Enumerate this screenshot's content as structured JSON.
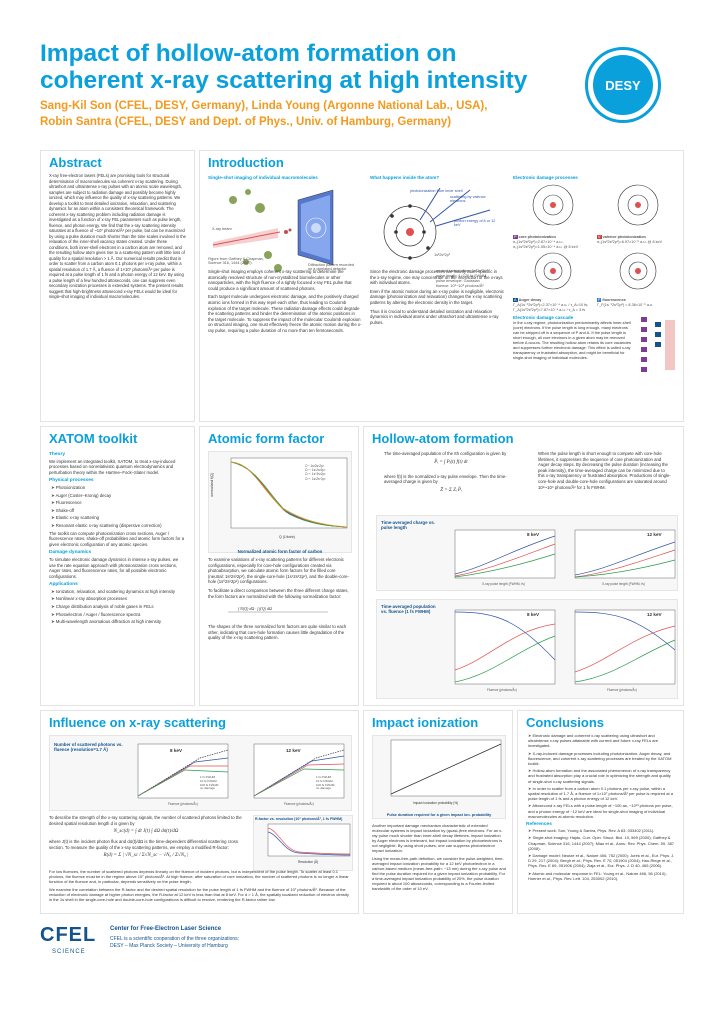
{
  "header": {
    "title_line1": "Impact of hollow-atom formation on",
    "title_line2": "coherent x-ray scattering at high intensity",
    "authors_line1": "Sang-Kil Son (CFEL, DESY, Germany), Linda Young (Argonne National Lab., USA),",
    "authors_line2": "Robin Santra (CFEL, DESY and Dept. of Phys., Univ. of Hamburg, Germany)",
    "logo": "DESY"
  },
  "abstract": {
    "heading": "Abstract",
    "text": "X-ray free-electron lasers (FELs) are promising tools for structural determination of macromolecules via coherent x-ray scattering. During ultrashort and ultraintense x-ray pulses with an atomic scale wavelength, samples are subject to radiation damage and possibly become highly ionized, which may influence the quality of x-ray scattering patterns. We develop a toolkit to treat detailed ionization, relaxation, and scattering dynamics for an atom within a consistent theoretical framework. The coherent x-ray scattering problem including radiation damage is investigated as a function of x-ray FEL parameters such as pulse length, fluence, and photon energy. We find that the x-ray scattering intensity saturates at a fluence of ~10⁷ photons/Å² per pulse, but can be maximized by using a pulse duration much shorter than the time scales involved in the relaxation of the inner-shell vacancy states created. Under these conditions, both inner-shell electrons in a carbon atom are removed, and the resulting hollow atom gives rise to a scattering pattern with little loss of quality for a spatial resolution > 1 Å. Our numerical results predict that in order to scatter from a carbon atom 0.1 photons per x-ray pulse, within a spatial resolution of 1.7 Å, a fluence of 1×10⁷ photons/Å² per pulse is required at a pulse length of 1 fs and a photon energy of 12 keV. By using a pulse length of a few hundred attoseconds, one can suppress even secondary ionization processes in extended systems. The present results suggest that high-brightness attosecond x-ray FELs would be ideal for single-shot imaging of individual macromolecules."
  },
  "introduction": {
    "heading": "Introduction",
    "fig1_title": "Single-shot imaging of individual macromolecules",
    "fig1_labels": [
      "X-ray beam",
      "Figure from Gaffney & Chapman, Science 316, 1444 (2007).",
      "Diffraction pattern recorded on a pixelated detector"
    ],
    "fig2_title": "What happens inside the atom?",
    "fig2_labels": [
      "photoionization from inner shell",
      "scattering by valence electrons",
      "photon energy of 8 or 12 keV",
      "1s²2s²2p²",
      "neutral carbon atom: 1s²2s²2p²",
      "pulse length: 1~120 fs FWHM",
      "pulse envelope: Gaussian",
      "fluence: 10⁶~10⁹ photons/Å²"
    ],
    "fig3_title": "Electronic damage processes",
    "damage_items": [
      {
        "badge": "P",
        "label": "core photoionization",
        "lines": "σ₀(1s²2s²2p²)=2.87×10⁻⁴ a.u.; σ₀(1s²2s²2p²)=1.55×10⁻⁴ a.u. @ 8 keV"
      },
      {
        "badge": "V",
        "label": "valence photoionization",
        "lines": "σ₀(1s²2s²2p²)=6.97×10⁻⁵ a.u. @ 8 keV"
      },
      {
        "badge": "A",
        "label": "Auger decay",
        "lines": "Γ_A(1s⁻¹2s²2p²)=2.37×10⁻⁴ a.u. / τ_A=10 fs; Γ_A(1s⁰2s²2p²)=7.87×10⁻⁴ a.u. / τ_A = 3 fs"
      },
      {
        "badge": "F",
        "label": "fluorescence",
        "lines": "Γ_F(1s⁻¹2s²2p²) = 8.36×10⁻⁵ a.u."
      }
    ],
    "cascade_title": "Electronic damage cascade",
    "cascade_text": "In the x-ray regime, photoionization predominantly affects inner-shell (core) electrons. If the pulse length is long enough, many electrons can be stripped off in a sequence of P and A. If the pulse length is short enough, all core electrons in a given atom may be removed before A occurs. The resulting hollow atom retains its core vacancies and suppresses further electronic damage. This effect is called x-ray transparency or frustrated absorption, and might be beneficial for single-shot imaging of individual molecules.",
    "para1": "Single-shot imaging employs coherent x-ray scattering to determine the atomically resolved structure of non-crystallized biomolecules or other nanoparticles, with the high fluence of a tightly focused x-ray FEL pulse that could produce a significant amount of scattered photons.",
    "para2": "Each target molecule undergoes electronic damage, and the positively charged atomic ions formed in this way repel each other, thus leading to Coulomb explosion of the target molecule. These radiation damage effects could degrade the scattering patterns and hinder the determination of the atomic positions in the target molecule. To suppress the impact of the molecular Coulomb explosion on structural imaging, one must effectively freeze the atomic motion during the x-ray pulse, requiring a pulse duration of no more than ten femtoseconds.",
    "para3": "Since the electronic damage processes are mainly atom-specific in the x-ray regime, one may concentrate on the interaction of the x-rays with individual atoms.",
    "para4": "Even if the atomic motion during an x-ray pulse is negligible, electronic damage (photoionization and relaxation) changes the x-ray scattering patterns by altering the electronic density in the target.",
    "para5": "Thus it is crucial to understand detailed ionization and relaxation dynamics in individual atoms under ultrashort and ultraintense x-ray pulses."
  },
  "xatom": {
    "heading": "XATOM toolkit",
    "theory_title": "Theory",
    "theory_text": "We implement an integrated toolkit, XATOM, to treat x-ray-induced processes based on nonrelativistic quantum electrodynamics and perturbation theory within the Hartree–Fock–Slater model.",
    "phys_title": "Physical processes",
    "phys_items": [
      "Photoionization",
      "Auger (Coster–Kronig) decay",
      "Fluorescence",
      "Shake-off",
      "Elastic x-ray scattering",
      "Resonant elastic x-ray scattering (dispersive correction)"
    ],
    "phys_text": "The toolkit can compute photoionization cross sections, Auger / fluorescence rates, shake-off probabilities and atomic form factors for a given electronic configuration of any atomic species.",
    "damage_title": "Damage dynamics",
    "damage_text": "To simulate electronic damage dynamics in intense x-ray pulses, we use the rate equation approach with photoionization cross sections, Auger rates, and fluorescence rates, for all possible electronic configurations.",
    "apps_title": "Applications",
    "apps_items": [
      "Ionization, relaxation, and scattering dynamics at high intensity",
      "Nonlinear x-ray absorption processes",
      "Charge distribution analysis of noble gases in FELs",
      "Photoelectron / Auger / fluorescence spectra",
      "Multi-wavelength anomalous diffraction at high intensity"
    ]
  },
  "aff": {
    "heading": "Atomic form factor",
    "fig_caption": "Normalized atomic form factor of carbon",
    "ylabel": "normalized f(Q)",
    "xlabel": "Q (1/bohr)",
    "legend": [
      "C⁰: 1s²2s²2p²",
      "C¹⁺: 1s¹2s²2p²",
      "C²⁺: 1s⁰2s²2p²",
      "C²⁺: 1s²2s⁰2p²"
    ],
    "para1": "To examine variations of x-ray scattering patterns for different electronic configurations, especially for core-hole configurations created via photoabsorption, we calculate atomic form factors for the filled core (neutral: 1s²2s²2p²), the single-core-hole (1s¹2s²2p²), and the double-core-hole (1s⁰2s²2p²) configurations.",
    "para2": "To facilitate a direct comparison between the three different charge states, the form factors are normalized with the following normalization factor:",
    "para3": "The shapes of the three normalized form factors are quite similar to each other, indicating that core-hole formation causes little degradation of the quality of the x-ray scattering pattern."
  },
  "hollow": {
    "heading": "Hollow-atom formation",
    "para1": "The time-averaged population of the Ith configuration is given by",
    "para2": "where f(t) is the normalized x-ray pulse envelope. Then the time-averaged charge is given by",
    "para3": "When the pulse length is short enough to compete with core-hole lifetimes, it suppresses the sequence of core photoionization and Auger decay steps. By decreasing the pulse duration (increasing the peak intensity), the time-averaged charge can be minimized due to this x-ray transparency or frustrated absorption. Productions of single-core-hole and double-core-hole configurations are saturated around 10⁸~10⁹ photons/Å² for 1 fs FWHM.",
    "fig1_caption": "Time-averaged charge vs. pulse length",
    "fig2_caption": "Time-averaged population vs. fluence (1 fs FWHM)",
    "kev8": "8 keV",
    "kev12": "12 keV",
    "xlabel1": "X-ray pulse length (FWHM, fs)",
    "xlabel2": "Fluence (photons/Å²)",
    "ylabel1": "Time-averaged charge",
    "ylabel2": "Time-averaged population"
  },
  "influence": {
    "heading": "Influence on x-ray scattering",
    "fig_caption": "Number of scattered photons vs. fluence (resolution=1.7 Å)",
    "kev8": "8 keV",
    "kev12": "12 keV",
    "legend": [
      "1 fs FWHM",
      "10 fs FWHM",
      "100 fs FWHM",
      "no damage"
    ],
    "xlabel": "Fluence (photons/Å²)",
    "ylabel": "Number of scattered photons",
    "para1": "To describe the strength of the x-ray scattering signals, the number of scattered photons limited to the desired spatial resolution length d is given by",
    "para2": "where J(t) is the incident photon flux and dσ(t)/dΩ is the time-dependent differential scattering cross section. To measure the quality of the x-ray scattering patterns, we employ a modified R-factor:",
    "rfig_caption": "R-factor vs. resolution (10⁷ photons/Å², 1 fs FWHM)",
    "rxlabel": "Resolution (Å)",
    "para3": "For low fluences, the number of scattered photons depends linearly on the fluence of incident photons, but is independent of the pulse length. To scatter at least 0.1 photons, the fluence must be in the regime above 10⁷ photons/Å². At high fluence, after saturation of core ionization, the number of scattered photons is no longer a linear function of the fluence and, in particular, depends sensitively on the pulse length.",
    "para4": "We examine the correlation between the R-factor and the desired spatial resolution for the pulse length of 1 fs FWHM and the fluence of 10⁷ photons/Å². Because of the reduction of electronic damage at higher photon energies, the R-factor at 12 keV is less than that at 8 keV. For d > 1 Å, the spatially localized reduction of electron density in the 1s shell in the single-core-hole and double-core-hole configurations is difficult to resolve, rendering the R-factor rather low."
  },
  "impact": {
    "heading": "Impact ionization",
    "fig_caption": "Pulse duration required for a given impact ion. probability",
    "xlabel": "Impact ionization probability (%)",
    "ylabel": "Pulse duration (as)",
    "para1": "Another important damage mechanism characteristic of extended molecular systems is impact ionization by (quasi-)free electrons. For an x-ray pulse much shorter than inner-shell decay lifetimes, impact ionization by Auger electrons is irrelevant, but impact ionization by photoelectrons is not negligible. By using short pulses, one can suppress photoelectron impact ionization.",
    "para2": "Using the mean-free-path definition, we consider the pulse-weighted, time-averaged impact ionization probability for a 12 keV photoelectron in a carbon-based medium (mean-free-path: ~13 nm) during the x-ray pulse and find the pulse duration required for a given impact ionization probability. For a time-averaged impact ionization probability of 20%, the pulse duration required is about 100 attoseconds, corresponding to a Fourier-limited bandwidth of the order of 10 eV."
  },
  "conclusions": {
    "heading": "Conclusions",
    "items": [
      "Electronic damage and coherent x-ray scattering using ultrashort and ultraintense x-ray pulses attainable with current and future x-ray FELs are investigated.",
      "X-ray-induced damage processes including photoionization, Auger decay, and fluorescence, and coherent x-ray scattering processes are treated by the XATOM toolkit.",
      "Hollow-atom formation and the associated phenomenon of x-ray transparency and frustrated absorption play a crucial role in optimizing the strength and quality of single-shot x-ray scattering signals.",
      "In order to scatter from a carbon atom 0.1 photons per x-ray pulse, within a spatial resolution of 1.7 Å, a fluence of 1×10⁷ photons/Å² per pulse is required at a pulse length of 1 fs and a photon energy of 12 keV.",
      "Attosecond x-ray FELs with a pulse length of ~100 as, ~10¹³ photons per pulse, and a photon energy of ~12 keV are ideal for single-shot imaging of individual macromolecules at atomic resolution."
    ],
    "refs_title": "References",
    "refs": [
      "Present work: Son, Young & Santra, Phys. Rev. A 83, 033402 (2011).",
      "Single-shot imaging: Hajdu, Curr. Opin. Struct. Biol. 10, 569 (2000); Gaffney & Chapman, Science 316, 1444 (2007); Miao et al., Annu. Rev. Phys. Chem. 59, 387 (2008).",
      "Damage model: Neutze et al., Nature 406, 752 (2000); Jurek et al., Eur. Phys. J. D 29, 217 (2004); Bergh et al., Phys. Rev. E 70, 051904 (2004); Hau-Riege et al., Phys. Rev. E 69, 051906 (2004); Ziaja et al., Eur. Phys. J. D 40, 465 (2006).",
      "Atomic and molecular response in FEL: Young et al., Nature 466, 56 (2010); Hoener et al., Phys. Rev. Lett. 104, 253002 (2010)."
    ]
  },
  "footer": {
    "logo": "CFEL",
    "logo_sub": "SCIENCE",
    "line1": "Center for Free-Electron Laser Science",
    "line2": "CFEL is a scientific cooperation of the three organizations:",
    "line3": "DESY – Max Planck Society – University of Hamburg"
  }
}
